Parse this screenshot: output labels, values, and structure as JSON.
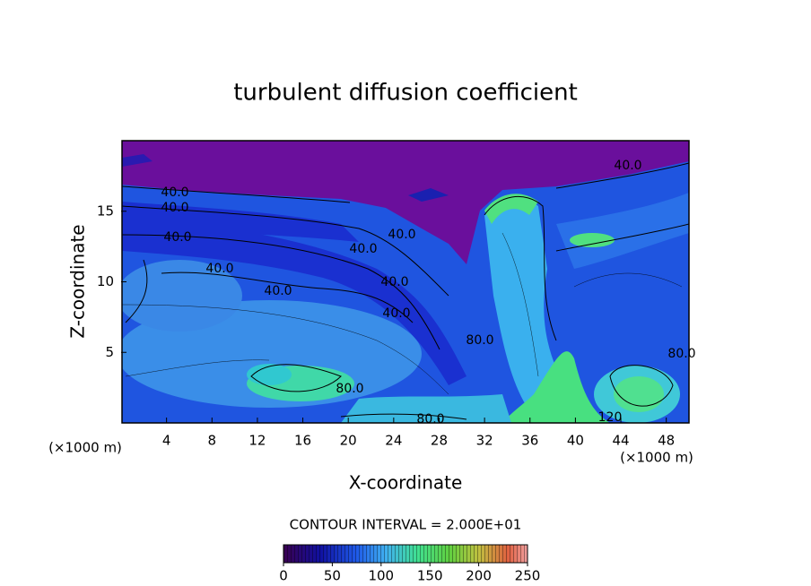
{
  "chart_data": {
    "type": "contour",
    "title": "turbulent diffusion coefficient",
    "xlabel": "X-coordinate",
    "ylabel": "Z-coordinate",
    "x_unit": "(×1000 m)",
    "y_unit": "(×1000 m)",
    "xlim": [
      0,
      50
    ],
    "xticks": [
      4,
      8,
      12,
      16,
      20,
      24,
      28,
      32,
      36,
      40,
      44,
      48
    ],
    "ylim": [
      0,
      20
    ],
    "yticks": [
      5,
      10,
      15
    ],
    "contour_interval": "CONTOUR INTERVAL = 2.000E+01",
    "contour_labels": [
      "40.0",
      "40.0",
      "40.0",
      "40.0",
      "40.0",
      "40.0",
      "40.0",
      "40.0",
      "40.0",
      "80.0",
      "80.0",
      "80.0",
      "80.0",
      "120",
      "40.0"
    ],
    "colorbar": {
      "clim": [
        0,
        250
      ],
      "ticks": [
        0,
        50,
        100,
        150,
        200,
        250
      ]
    }
  }
}
